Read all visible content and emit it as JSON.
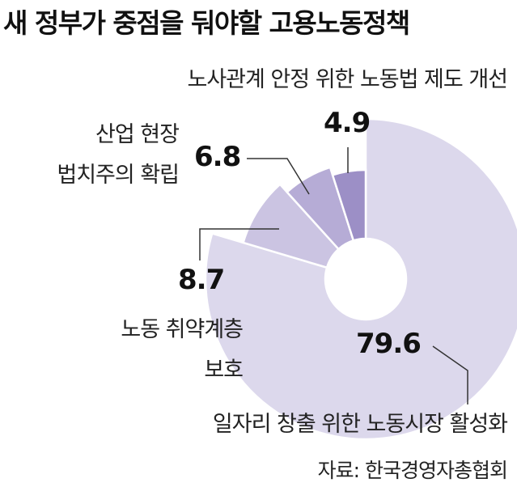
{
  "chart_data": {
    "type": "donut",
    "title": "새 정부가 중점을 둬야할 고용노동정책",
    "center_label": "%",
    "categories": [
      "일자리 창출 위한 노동시장 활성화",
      "노동 취약계층\n보호",
      "산업 현장\n법치주의 확립",
      "노사관계 안정 위한 노동법 제도 개선"
    ],
    "values": [
      79.6,
      8.7,
      6.8,
      4.9
    ],
    "colors": [
      "#dcd8ec",
      "#cbc4e2",
      "#b6acd6",
      "#9c8fc6"
    ],
    "source": "자료: 한국경영자총협회"
  }
}
